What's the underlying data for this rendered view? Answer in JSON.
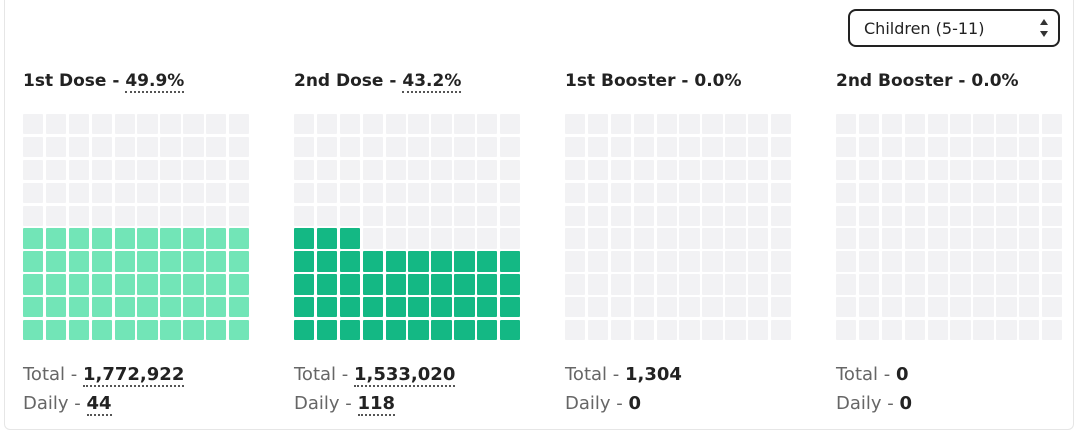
{
  "filter": {
    "selected": "Children (5-11)"
  },
  "colors": {
    "empty": "#f2f2f4",
    "dose1": "#72e5b7",
    "dose2": "#14b884",
    "booster": "#72e5b7"
  },
  "panels": [
    {
      "title": "1st Dose",
      "sep": " - ",
      "pct": "49.9%",
      "pct_value": 49.9,
      "color": "#72e5b7",
      "total_label": "Total",
      "total": "1,772,922",
      "daily_label": "Daily",
      "daily": "44",
      "underline": true
    },
    {
      "title": "2nd Dose",
      "sep": " - ",
      "pct": "43.2%",
      "pct_value": 43.2,
      "color": "#14b884",
      "total_label": "Total",
      "total": "1,533,020",
      "daily_label": "Daily",
      "daily": "118",
      "underline": true
    },
    {
      "title": "1st Booster",
      "sep": " - ",
      "pct": "0.0%",
      "pct_value": 0.0,
      "color": "#72e5b7",
      "total_label": "Total",
      "total": "1,304",
      "daily_label": "Daily",
      "daily": "0",
      "underline": false
    },
    {
      "title": "2nd Booster",
      "sep": " - ",
      "pct": "0.0%",
      "pct_value": 0.0,
      "color": "#72e5b7",
      "total_label": "Total",
      "total": "0",
      "daily_label": "Daily",
      "daily": "0",
      "underline": false
    }
  ],
  "sep": " - "
}
